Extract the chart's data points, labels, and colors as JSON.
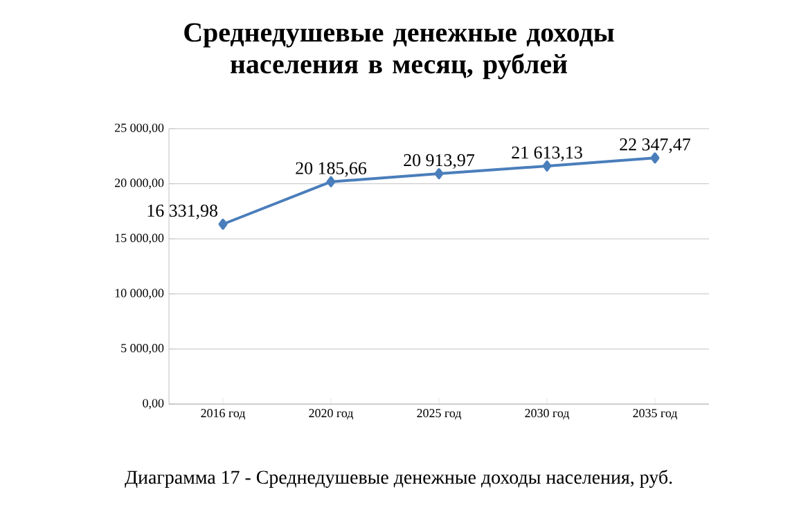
{
  "chart_data": {
    "type": "line",
    "title": "Среднедушевые денежные доходы населения в месяц, рублей",
    "categories": [
      "2016 год",
      "2020 год",
      "2025 год",
      "2030 год",
      "2035 год"
    ],
    "values": [
      16331.98,
      20185.66,
      20913.97,
      21613.13,
      22347.47
    ],
    "value_labels": [
      "16 331,98",
      "20 185,66",
      "20 913,97",
      "21 613,13",
      "22 347,47"
    ],
    "color": "#4a7ebb",
    "marker": "diamond",
    "line_style": "solid",
    "grid": "y",
    "ylim": [
      0,
      25000
    ],
    "yticks": [
      {
        "value": 0,
        "label": "0,00"
      },
      {
        "value": 5000,
        "label": "5 000,00"
      },
      {
        "value": 10000,
        "label": "10 000,00"
      },
      {
        "value": 15000,
        "label": "15 000,00"
      },
      {
        "value": 20000,
        "label": "20 000,00"
      },
      {
        "value": 25000,
        "label": "25 000,00"
      }
    ],
    "annotations": [
      "Диаграмма 17 - Среднедушевые денежные доходы населения, руб."
    ]
  }
}
